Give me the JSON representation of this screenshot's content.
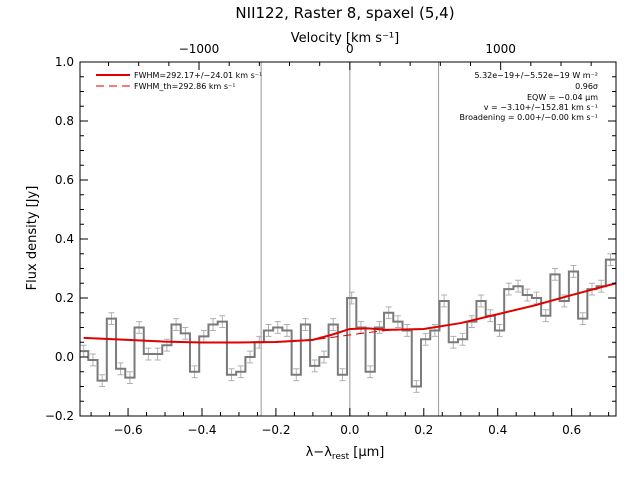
{
  "chart_data": {
    "type": "line",
    "title": "NII122, Raster 8, spaxel (5,4)",
    "xlabel": "λ−λ",
    "xlabel_sub": "rest",
    "xlabel_unit": " [μm]",
    "ylabel": "Flux density [Jy]",
    "top_axis_label": "Velocity [km s⁻¹]",
    "xlim": [
      -0.73,
      0.72
    ],
    "ylim": [
      -0.2,
      1.0
    ],
    "x_ticks": [
      "−0.6",
      "−0.4",
      "−0.2",
      "0.0",
      "0.2",
      "0.4",
      "0.6"
    ],
    "x_tick_values": [
      -0.6,
      -0.4,
      -0.2,
      0.0,
      0.2,
      0.4,
      0.6
    ],
    "y_ticks": [
      "−0.2",
      "0.0",
      "0.2",
      "0.4",
      "0.6",
      "0.8",
      "1.0"
    ],
    "y_tick_values": [
      -0.2,
      0.0,
      0.2,
      0.4,
      0.6,
      0.8,
      1.0
    ],
    "top_ticks": [
      "−1000",
      "0",
      "1000"
    ],
    "top_tick_positions_um": [
      -0.408,
      0.0,
      0.408
    ],
    "vertical_lines_um": [
      -0.24,
      0.0,
      0.24
    ],
    "legend": {
      "placement": "top-left",
      "entries": [
        {
          "label": "FWHM=292.17+/−24.01 km s⁻¹",
          "style": "solid"
        },
        {
          "label": "FWHM_th=292.86 km s⁻¹",
          "style": "dashed"
        }
      ]
    },
    "annotations": [
      "5.32e−19+/−5.52e−19 W m⁻²",
      "0.96σ",
      "EQW = −0.04 μm",
      "v = −3.10+/−152.81 km s⁻¹",
      "Broadening = 0.00+/−0.00 km s⁻¹"
    ],
    "spectrum": {
      "x": [
        -0.72,
        -0.695,
        -0.67,
        -0.645,
        -0.62,
        -0.595,
        -0.57,
        -0.545,
        -0.52,
        -0.495,
        -0.47,
        -0.445,
        -0.42,
        -0.395,
        -0.37,
        -0.345,
        -0.32,
        -0.295,
        -0.27,
        -0.245,
        -0.22,
        -0.195,
        -0.17,
        -0.145,
        -0.12,
        -0.095,
        -0.07,
        -0.045,
        -0.02,
        0.005,
        0.03,
        0.055,
        0.08,
        0.105,
        0.13,
        0.155,
        0.18,
        0.205,
        0.23,
        0.255,
        0.28,
        0.305,
        0.33,
        0.355,
        0.38,
        0.405,
        0.43,
        0.455,
        0.48,
        0.505,
        0.53,
        0.555,
        0.58,
        0.605,
        0.63,
        0.655,
        0.68,
        0.705
      ],
      "y": [
        0.02,
        -0.01,
        -0.08,
        0.13,
        -0.04,
        -0.07,
        0.1,
        0.01,
        0.01,
        0.04,
        0.11,
        0.08,
        -0.05,
        0.07,
        0.11,
        0.12,
        -0.06,
        -0.05,
        0.0,
        0.05,
        0.09,
        0.1,
        0.09,
        -0.06,
        0.11,
        -0.03,
        0.0,
        0.11,
        -0.06,
        0.2,
        0.1,
        -0.05,
        0.1,
        0.15,
        0.12,
        0.09,
        -0.1,
        0.06,
        0.09,
        0.19,
        0.05,
        0.06,
        0.12,
        0.19,
        0.14,
        0.09,
        0.23,
        0.24,
        0.21,
        0.2,
        0.14,
        0.28,
        0.19,
        0.29,
        0.13,
        0.23,
        0.24,
        0.33
      ],
      "error": 0.02
    },
    "fit": {
      "name": "FWHM=292.17+/−24.01 km s⁻¹",
      "x": [
        -0.72,
        -0.6,
        -0.5,
        -0.4,
        -0.3,
        -0.2,
        -0.1,
        -0.05,
        0.0,
        0.05,
        0.1,
        0.2,
        0.3,
        0.4,
        0.5,
        0.6,
        0.72
      ],
      "y": [
        0.065,
        0.058,
        0.052,
        0.049,
        0.049,
        0.051,
        0.058,
        0.075,
        0.095,
        0.097,
        0.092,
        0.095,
        0.115,
        0.145,
        0.175,
        0.21,
        0.25
      ]
    },
    "fit_theoretical": {
      "name": "FWHM_th=292.86 km s⁻¹",
      "x": [
        -0.72,
        -0.6,
        -0.5,
        -0.4,
        -0.3,
        -0.2,
        -0.1,
        -0.05,
        0.0,
        0.05,
        0.1,
        0.2,
        0.3,
        0.4,
        0.5,
        0.6,
        0.72
      ],
      "y": [
        0.065,
        0.058,
        0.052,
        0.049,
        0.049,
        0.051,
        0.058,
        0.066,
        0.075,
        0.083,
        0.09,
        0.095,
        0.115,
        0.145,
        0.175,
        0.21,
        0.25
      ]
    }
  }
}
